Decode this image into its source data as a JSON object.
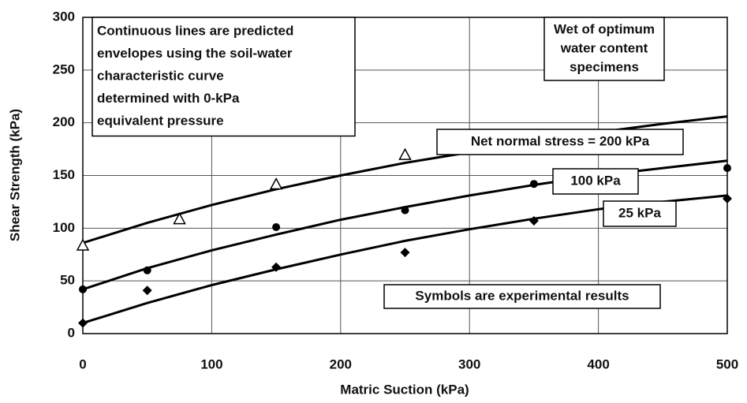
{
  "chart_data": {
    "type": "line",
    "xlabel": "Matric Suction (kPa)",
    "ylabel": "Shear Strength (kPa)",
    "xlim": [
      0,
      500
    ],
    "xticks": [
      0,
      100,
      200,
      300,
      400,
      500
    ],
    "ylim": [
      0,
      300
    ],
    "yticks": [
      0,
      50,
      100,
      150,
      200,
      250,
      300
    ],
    "grid": true,
    "x": [
      0,
      50,
      100,
      150,
      200,
      250,
      300,
      350,
      400,
      450,
      500
    ],
    "series": [
      {
        "name": "Net normal stress = 200 kPa",
        "color": "#000000",
        "values": [
          86,
          105,
          122,
          137,
          150,
          162,
          172,
          182,
          191,
          199,
          206
        ]
      },
      {
        "name": "100 kPa",
        "color": "#000000",
        "values": [
          42,
          62,
          79,
          94,
          108,
          120,
          131,
          141,
          150,
          157,
          164
        ]
      },
      {
        "name": "25 kPa",
        "color": "#000000",
        "values": [
          10,
          29,
          46,
          61,
          75,
          88,
          99,
          109,
          118,
          125,
          131
        ]
      }
    ],
    "points": [
      {
        "marker": "triangle",
        "x": [
          0,
          75,
          150,
          250
        ],
        "values": [
          83,
          108,
          141,
          169
        ]
      },
      {
        "marker": "circle",
        "x": [
          0,
          50,
          150,
          250,
          350,
          500
        ],
        "values": [
          42,
          60,
          101,
          117,
          142,
          157
        ]
      },
      {
        "marker": "diamond",
        "x": [
          0,
          50,
          150,
          250,
          350,
          500
        ],
        "values": [
          10,
          41,
          63,
          77,
          107,
          128
        ]
      }
    ],
    "annotations": [
      [
        "Continuous lines are predicted",
        "envelopes using the soil-water",
        "characteristic curve",
        "determined with 0-kPa",
        "equivalent pressure"
      ],
      [
        "Wet of optimum",
        "water content",
        "specimens"
      ],
      [
        "Symbols are experimental results"
      ]
    ]
  }
}
